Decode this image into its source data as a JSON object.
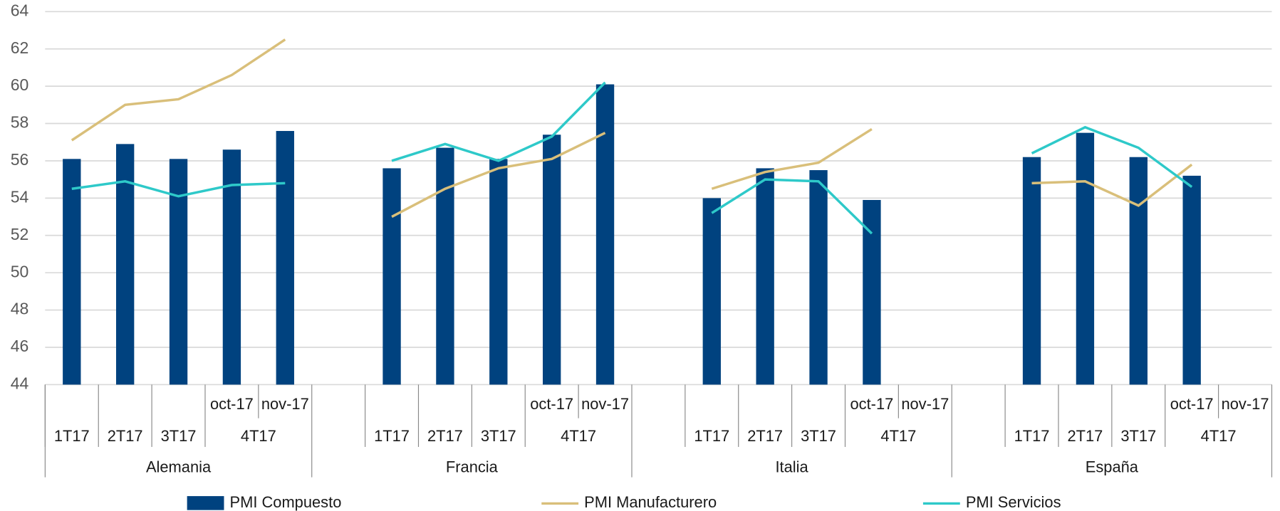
{
  "chart_data": {
    "type": "bar_line",
    "groups": [
      {
        "name": "Alemania",
        "quarters": [
          "1T17",
          "2T17",
          "3T17",
          "4T17"
        ],
        "months": [
          "oct-17",
          "nov-17"
        ]
      },
      {
        "name": "Francia",
        "quarters": [
          "1T17",
          "2T17",
          "3T17",
          "4T17"
        ],
        "months": [
          "oct-17",
          "nov-17"
        ]
      },
      {
        "name": "Italia",
        "quarters": [
          "1T17",
          "2T17",
          "3T17",
          "4T17"
        ],
        "months": [
          "oct-17",
          "nov-17"
        ]
      },
      {
        "name": "España",
        "quarters": [
          "1T17",
          "2T17",
          "3T17",
          "4T17"
        ],
        "months": [
          "oct-17",
          "nov-17"
        ]
      }
    ],
    "series": [
      {
        "name": "PMI Compuesto",
        "kind": "bar",
        "color": "#00427f",
        "values": [
          56.1,
          56.9,
          56.1,
          56.6,
          57.6,
          null,
          55.6,
          56.7,
          56.1,
          57.4,
          60.1,
          null,
          54.0,
          55.6,
          55.5,
          53.9,
          null,
          null,
          56.2,
          57.5,
          56.2,
          55.2,
          null
        ]
      },
      {
        "name": "PMI Manufacturero",
        "kind": "line",
        "color": "#d9bf7a",
        "values": [
          57.1,
          59.0,
          59.3,
          60.6,
          62.5,
          null,
          53.0,
          54.5,
          55.6,
          56.1,
          57.5,
          null,
          54.5,
          55.4,
          55.9,
          57.7,
          null,
          null,
          54.8,
          54.9,
          53.6,
          55.8,
          null
        ]
      },
      {
        "name": "PMI Servicios",
        "kind": "line",
        "color": "#2ec9c9",
        "values": [
          54.5,
          54.9,
          54.1,
          54.7,
          54.8,
          null,
          56.0,
          56.9,
          56.0,
          57.3,
          60.2,
          null,
          53.2,
          55.0,
          54.9,
          52.1,
          null,
          null,
          56.4,
          57.8,
          56.7,
          54.6,
          null
        ]
      }
    ],
    "ylim": [
      44,
      64
    ],
    "yticks": [
      44,
      46,
      48,
      50,
      52,
      54,
      56,
      58,
      60,
      62,
      64
    ],
    "grid": true
  }
}
